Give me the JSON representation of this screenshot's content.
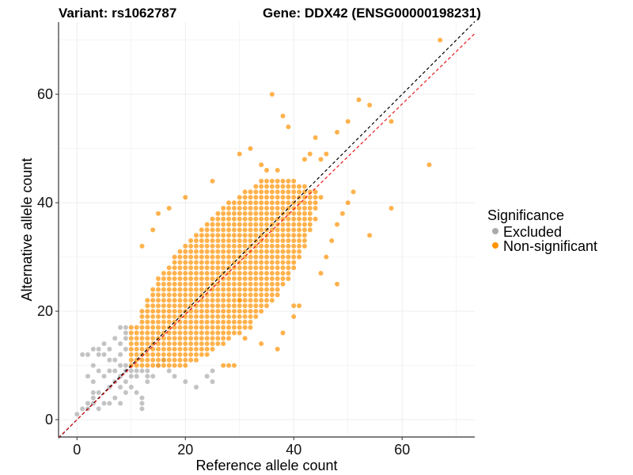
{
  "chart_data": {
    "type": "scatter",
    "title_left": "Variant: rs1062787",
    "title_right": "Gene: DDX42 (ENSG00000198231)",
    "xlabel": "Reference allele count",
    "ylabel": "Alternative allele count",
    "xlim": [
      -3.4,
      73.4
    ],
    "ylim": [
      -3.2,
      73.3
    ],
    "xticks": [
      0,
      20,
      40,
      60
    ],
    "yticks": [
      0,
      20,
      40,
      60
    ],
    "grid": true,
    "legend": {
      "title": "Significance",
      "position": "right",
      "entries": [
        {
          "label": "Excluded",
          "color": "#aaaaaa"
        },
        {
          "label": "Non-significant",
          "color": "#ff9200"
        }
      ]
    },
    "reference_lines": [
      {
        "name": "identity",
        "slope": 1.0,
        "intercept": 0,
        "color": "#000000"
      },
      {
        "name": "fit",
        "slope": 0.97,
        "intercept": 0,
        "color": "#e8151a"
      }
    ],
    "series": [
      {
        "name": "Excluded",
        "color": "#aaaaaa",
        "points": [
          [
            1,
            2
          ],
          [
            2,
            3
          ],
          [
            3,
            5
          ],
          [
            3,
            7
          ],
          [
            4,
            9
          ],
          [
            5,
            12
          ],
          [
            4,
            12
          ],
          [
            2,
            12
          ],
          [
            1,
            12
          ],
          [
            3,
            10
          ],
          [
            5,
            8
          ],
          [
            6,
            9
          ],
          [
            6,
            6
          ],
          [
            7,
            4
          ],
          [
            7,
            11
          ],
          [
            8,
            8
          ],
          [
            8,
            14
          ],
          [
            9,
            15
          ],
          [
            9,
            13
          ],
          [
            9,
            10
          ],
          [
            8,
            12
          ],
          [
            7,
            15
          ],
          [
            6,
            13
          ],
          [
            5,
            14
          ],
          [
            2,
            8
          ],
          [
            3,
            4
          ],
          [
            4,
            5
          ],
          [
            5,
            3
          ],
          [
            6,
            3
          ],
          [
            8,
            3
          ],
          [
            9,
            5
          ],
          [
            10,
            6
          ],
          [
            10,
            8
          ],
          [
            11,
            9
          ],
          [
            12,
            9
          ],
          [
            13,
            7
          ],
          [
            13,
            9
          ],
          [
            14,
            8
          ],
          [
            15,
            10
          ],
          [
            16,
            11
          ],
          [
            17,
            9
          ],
          [
            18,
            8
          ],
          [
            20,
            7
          ],
          [
            22,
            6
          ],
          [
            24,
            8
          ],
          [
            25,
            9
          ],
          [
            25,
            7
          ],
          [
            12,
            2
          ],
          [
            12,
            3
          ],
          [
            12,
            4
          ],
          [
            11,
            5
          ],
          [
            0,
            1
          ],
          [
            2,
            2
          ],
          [
            3,
            3
          ],
          [
            4,
            2
          ],
          [
            7,
            7
          ],
          [
            8,
            6
          ],
          [
            9,
            9
          ],
          [
            11,
            8
          ],
          [
            9,
            7
          ],
          [
            6,
            11
          ],
          [
            7,
            9
          ],
          [
            8,
            10
          ],
          [
            9,
            16
          ],
          [
            9,
            17
          ],
          [
            8,
            17
          ],
          [
            3,
            13
          ],
          [
            4,
            13
          ],
          [
            10,
            9
          ],
          [
            13,
            8
          ]
        ]
      },
      {
        "name": "Non-significant",
        "color": "#ff9200",
        "rows": [
          [
            10,
            10,
            20
          ],
          [
            11,
            10,
            22
          ],
          [
            12,
            10,
            24
          ],
          [
            13,
            10,
            25
          ],
          [
            14,
            10,
            27
          ],
          [
            15,
            10,
            28
          ],
          [
            16,
            10,
            30
          ],
          [
            17,
            10,
            31
          ],
          [
            18,
            12,
            32
          ],
          [
            19,
            12,
            33
          ],
          [
            20,
            12,
            34
          ],
          [
            21,
            13,
            35
          ],
          [
            22,
            13,
            36
          ],
          [
            23,
            14,
            37
          ],
          [
            24,
            14,
            37
          ],
          [
            25,
            15,
            38
          ],
          [
            26,
            15,
            39
          ],
          [
            27,
            16,
            39
          ],
          [
            28,
            17,
            40
          ],
          [
            29,
            18,
            40
          ],
          [
            30,
            18,
            41
          ],
          [
            31,
            19,
            41
          ],
          [
            32,
            20,
            42
          ],
          [
            33,
            21,
            42
          ],
          [
            34,
            22,
            42
          ],
          [
            35,
            23,
            43
          ],
          [
            36,
            24,
            43
          ],
          [
            37,
            25,
            44
          ],
          [
            38,
            26,
            43
          ],
          [
            39,
            27,
            44
          ],
          [
            40,
            28,
            44
          ],
          [
            41,
            30,
            45
          ],
          [
            42,
            31,
            44
          ],
          [
            43,
            33,
            42
          ],
          [
            44,
            34,
            40
          ]
        ],
        "points": [
          [
            36,
            60
          ],
          [
            38,
            56
          ],
          [
            39,
            54
          ],
          [
            32,
            50
          ],
          [
            30,
            49
          ],
          [
            34,
            47
          ],
          [
            35,
            46
          ],
          [
            37,
            46
          ],
          [
            45,
            48
          ],
          [
            46,
            49
          ],
          [
            48,
            53
          ],
          [
            50,
            55
          ],
          [
            52,
            59
          ],
          [
            54,
            58
          ],
          [
            58,
            55
          ],
          [
            65,
            47
          ],
          [
            58,
            39
          ],
          [
            54,
            34
          ],
          [
            67,
            70
          ],
          [
            48,
            25
          ],
          [
            45,
            27
          ],
          [
            46,
            30
          ],
          [
            40,
            21
          ],
          [
            41,
            21
          ],
          [
            47,
            33
          ],
          [
            48,
            36
          ],
          [
            49,
            38
          ],
          [
            50,
            40
          ],
          [
            51,
            42
          ],
          [
            42,
            48
          ],
          [
            43,
            49
          ],
          [
            44,
            52
          ],
          [
            12,
            32
          ],
          [
            14,
            35
          ],
          [
            15,
            38
          ],
          [
            17,
            39
          ],
          [
            20,
            41
          ],
          [
            25,
            44
          ],
          [
            30,
            22
          ],
          [
            32,
            17
          ],
          [
            31,
            15
          ],
          [
            34,
            14
          ],
          [
            38,
            16
          ],
          [
            40,
            19
          ],
          [
            37,
            13
          ],
          [
            28,
            10
          ],
          [
            29,
            10
          ],
          [
            27,
            10
          ]
        ]
      }
    ]
  }
}
